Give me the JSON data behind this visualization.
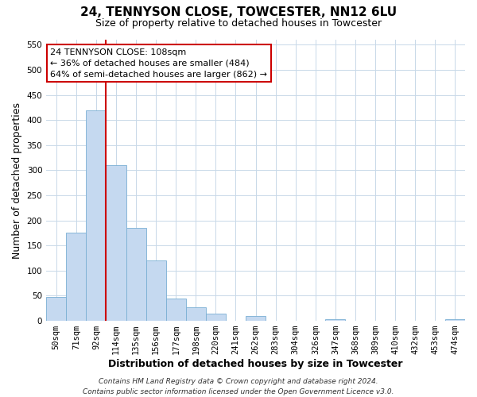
{
  "title": "24, TENNYSON CLOSE, TOWCESTER, NN12 6LU",
  "subtitle": "Size of property relative to detached houses in Towcester",
  "xlabel": "Distribution of detached houses by size in Towcester",
  "ylabel": "Number of detached properties",
  "bar_labels": [
    "50sqm",
    "71sqm",
    "92sqm",
    "114sqm",
    "135sqm",
    "156sqm",
    "177sqm",
    "198sqm",
    "220sqm",
    "241sqm",
    "262sqm",
    "283sqm",
    "304sqm",
    "326sqm",
    "347sqm",
    "368sqm",
    "389sqm",
    "410sqm",
    "432sqm",
    "453sqm",
    "474sqm"
  ],
  "bar_values": [
    47,
    175,
    420,
    310,
    185,
    120,
    45,
    27,
    14,
    0,
    10,
    0,
    0,
    0,
    4,
    0,
    0,
    0,
    0,
    0,
    3
  ],
  "bar_color": "#c5d9f0",
  "bar_edge_color": "#7aafd4",
  "ylim": [
    0,
    560
  ],
  "yticks": [
    0,
    50,
    100,
    150,
    200,
    250,
    300,
    350,
    400,
    450,
    500,
    550
  ],
  "vline_x_index": 3,
  "vline_color": "#cc0000",
  "annotation_title": "24 TENNYSON CLOSE: 108sqm",
  "annotation_line1": "← 36% of detached houses are smaller (484)",
  "annotation_line2": "64% of semi-detached houses are larger (862) →",
  "annotation_box_color": "#ffffff",
  "annotation_box_edge": "#cc0000",
  "footer_line1": "Contains HM Land Registry data © Crown copyright and database right 2024.",
  "footer_line2": "Contains public sector information licensed under the Open Government Licence v3.0.",
  "background_color": "#ffffff",
  "grid_color": "#c8d8e8",
  "title_fontsize": 11,
  "subtitle_fontsize": 9,
  "axis_label_fontsize": 9,
  "tick_fontsize": 7.5,
  "annotation_fontsize": 8,
  "footer_fontsize": 6.5
}
